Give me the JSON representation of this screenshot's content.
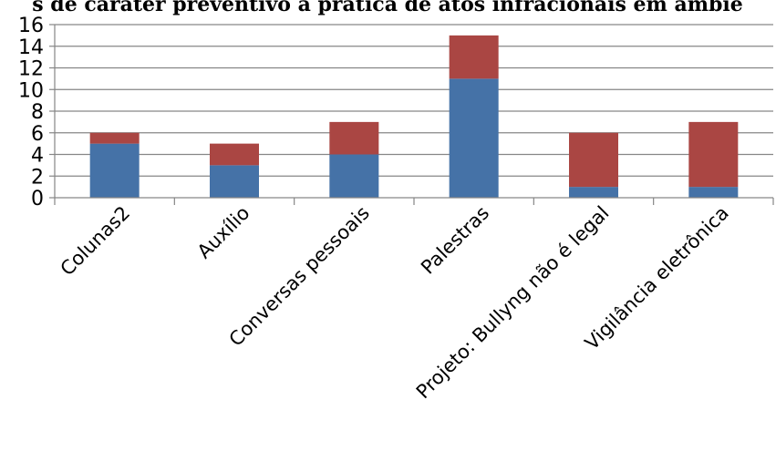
{
  "chart_data": {
    "type": "bar",
    "stacked": true,
    "title": "s de caráter preventivo à prática de atos infracionais em ambie",
    "categories": [
      "Colunas2",
      "Auxílio",
      "Conversas pessoais",
      "Palestras",
      "Projeto: Bullyng não é legal",
      "Vigilância eletrônica"
    ],
    "series": [
      {
        "values": [
          5,
          3,
          4,
          11,
          1,
          1
        ],
        "color": "#4572a7"
      },
      {
        "values": [
          1,
          2,
          3,
          4,
          5,
          6
        ],
        "color": "#aa4643"
      }
    ],
    "ylim": [
      0,
      16
    ],
    "yticks": [
      0,
      2,
      4,
      6,
      8,
      10,
      12,
      14,
      16
    ],
    "xlabel": "",
    "ylabel": "",
    "grid": true,
    "legend": "none"
  }
}
